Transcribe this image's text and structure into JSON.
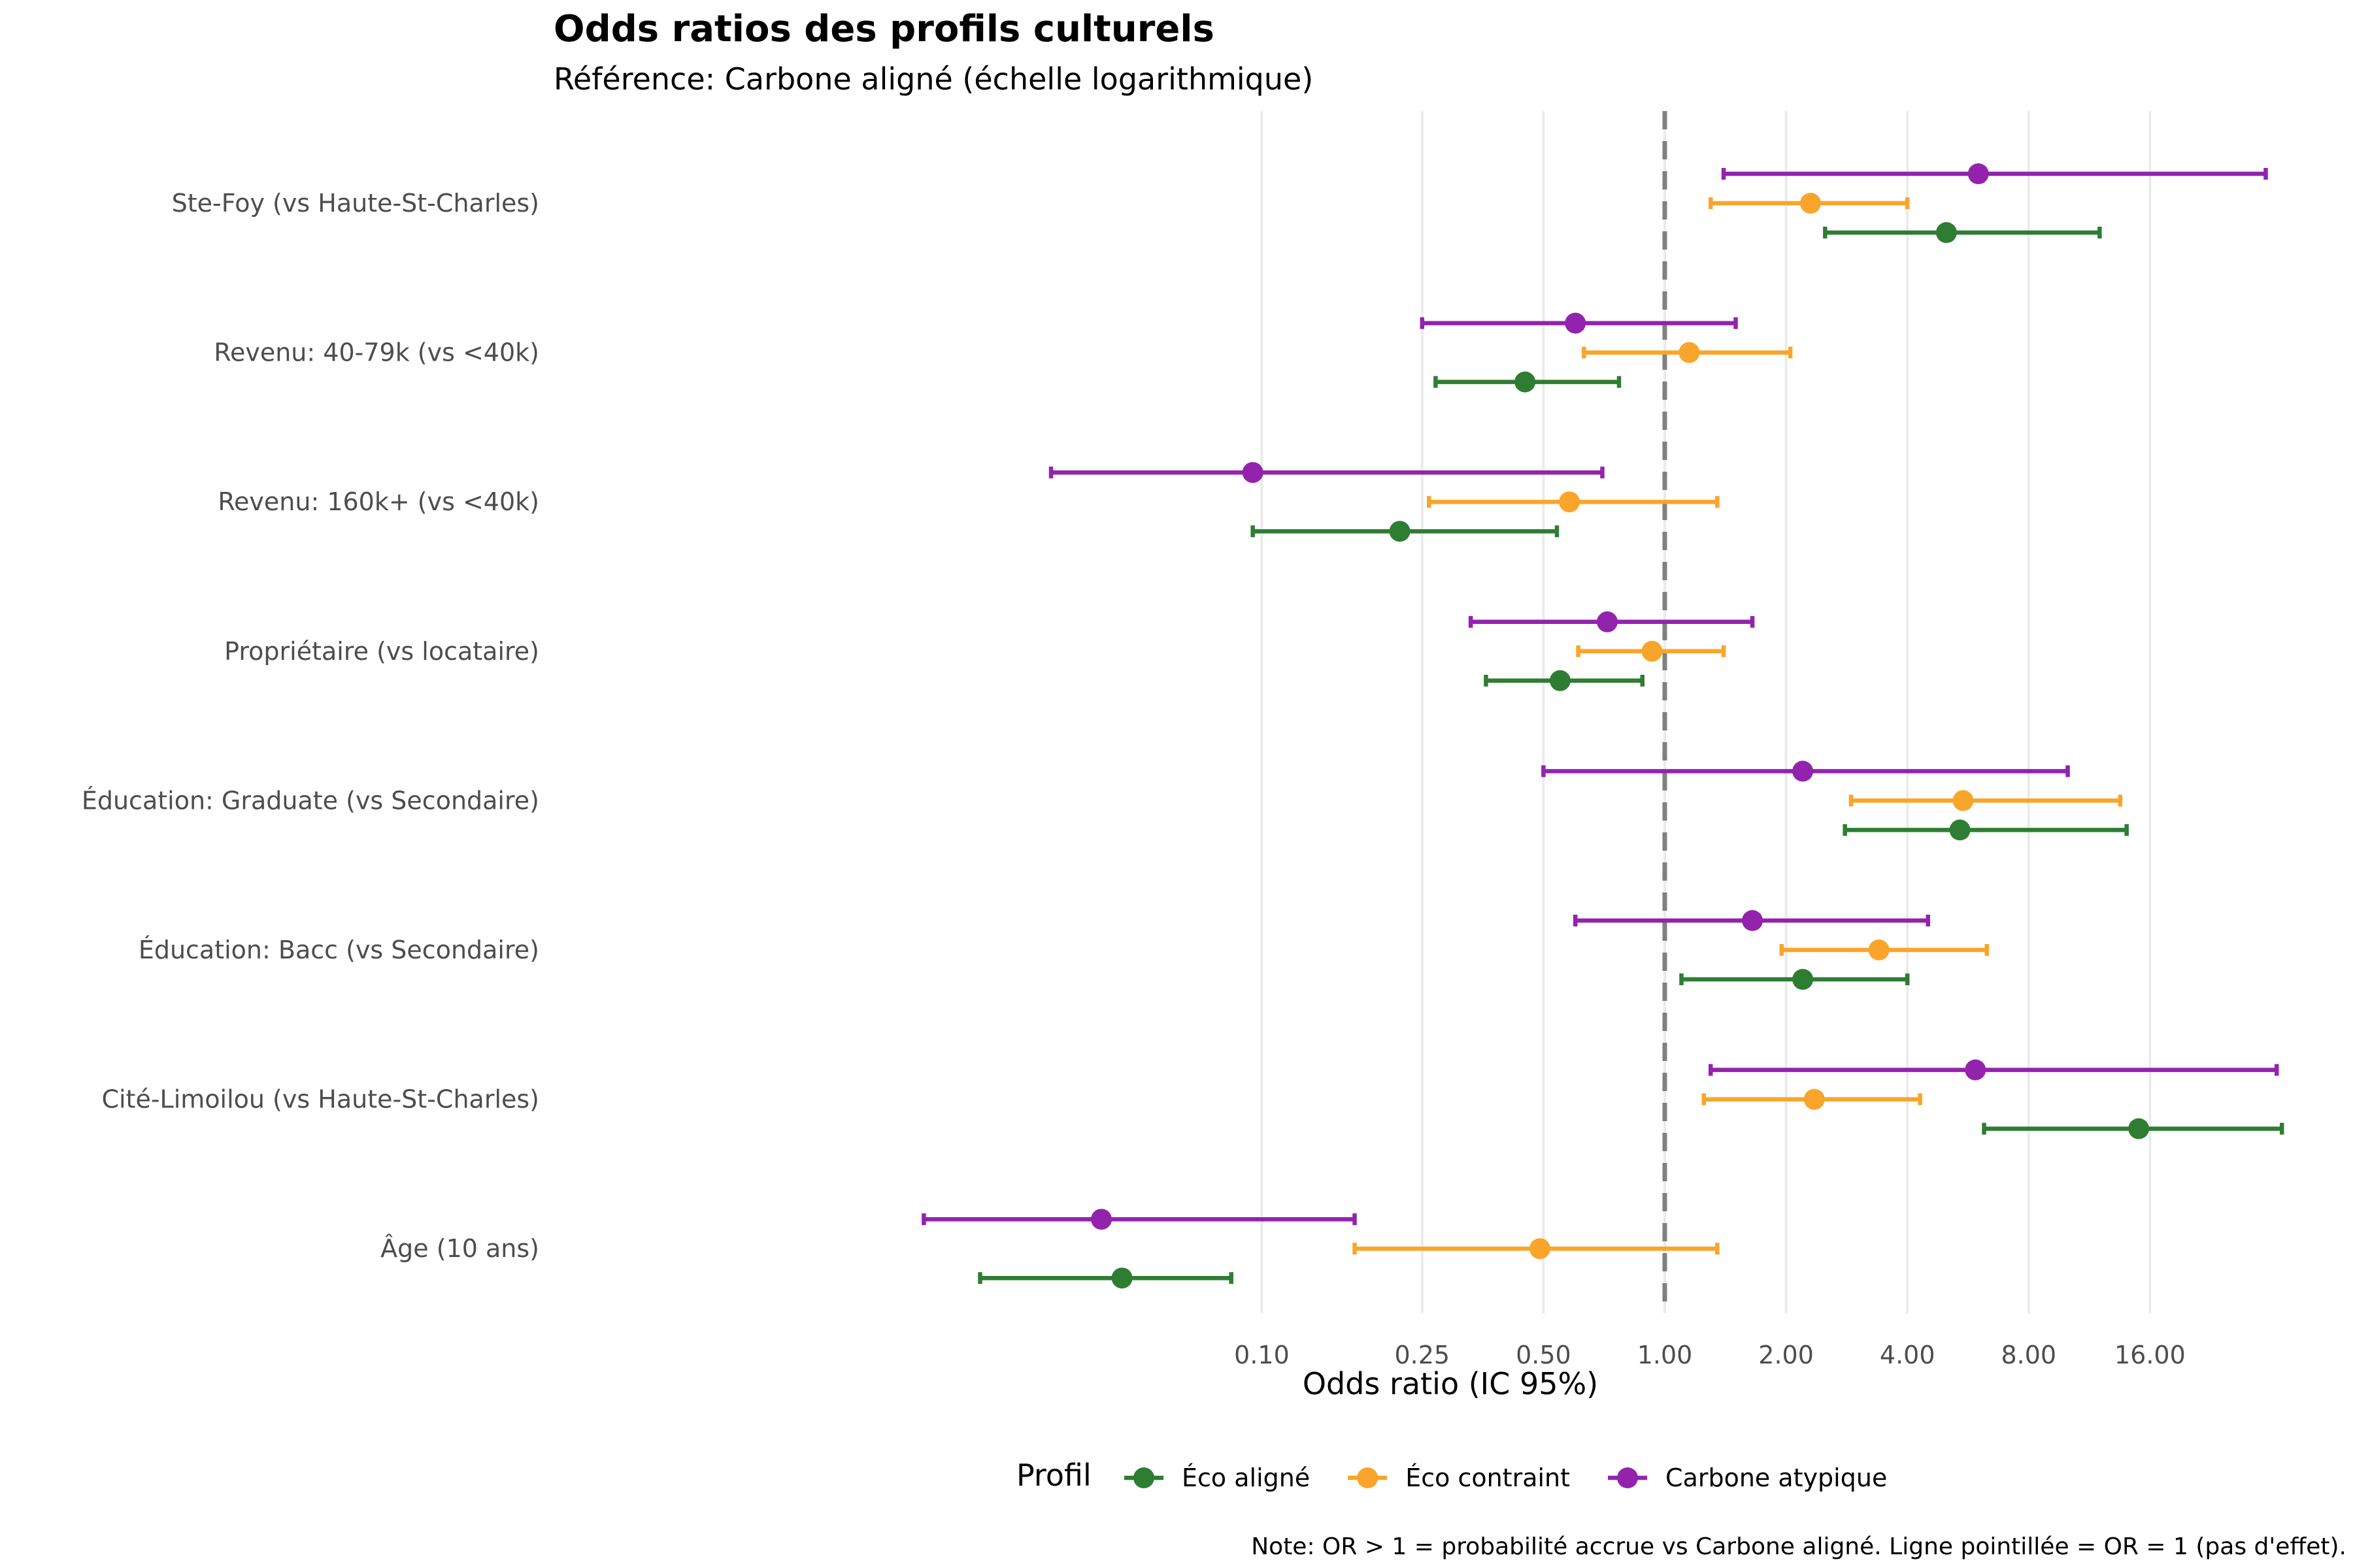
{
  "chart_data": {
    "type": "forest",
    "title": "Odds ratios des profils culturels",
    "subtitle": "Référence: Carbone aligné (échelle logarithmique)",
    "xlabel": "Odds ratio (IC 95%)",
    "ylabel": "",
    "x_scale": "log2",
    "xlim": [
      0.015,
      40
    ],
    "x_ticks": [
      0.1,
      0.25,
      0.5,
      1.0,
      2.0,
      4.0,
      8.0,
      16.0
    ],
    "x_tick_labels": [
      "0.10",
      "0.25",
      "0.50",
      "1.00",
      "2.00",
      "4.00",
      "8.00",
      "16.00"
    ],
    "reference_line": 1,
    "grid": "vertical major",
    "legend": {
      "title": "Profil",
      "position": "bottom"
    },
    "categories": [
      "Ste-Foy (vs Haute-St-Charles)",
      "Revenu: 40-79k (vs <40k)",
      "Revenu: 160k+ (vs <40k)",
      "Propriétaire (vs locataire)",
      "Éducation: Graduate (vs Secondaire)",
      "Éducation: Bacc (vs Secondaire)",
      "Cité-Limoilou (vs Haute-St-Charles)",
      "Âge (10 ans)"
    ],
    "series": [
      {
        "name": "Éco aligné",
        "color": "#2e7d32",
        "or": [
          5.0,
          0.45,
          0.22,
          0.55,
          5.4,
          2.2,
          15.0,
          0.045
        ],
        "lower": [
          2.5,
          0.27,
          0.095,
          0.36,
          2.8,
          1.1,
          6.2,
          0.02
        ],
        "upper": [
          12.0,
          0.77,
          0.54,
          0.88,
          14.0,
          4.0,
          34.0,
          0.084
        ]
      },
      {
        "name": "Éco contraint",
        "color": "#f9a52b",
        "or": [
          2.3,
          1.15,
          0.58,
          0.93,
          5.5,
          3.4,
          2.35,
          0.49
        ],
        "lower": [
          1.3,
          0.63,
          0.26,
          0.61,
          2.9,
          1.95,
          1.25,
          0.17
        ],
        "upper": [
          4.0,
          2.05,
          1.35,
          1.4,
          13.5,
          6.3,
          4.3,
          1.35
        ]
      },
      {
        "name": "Carbone atypique",
        "color": "#9323ad",
        "or": [
          6.0,
          0.6,
          0.095,
          0.72,
          2.2,
          1.65,
          5.9,
          0.04
        ],
        "lower": [
          1.4,
          0.25,
          0.03,
          0.33,
          0.5,
          0.6,
          1.3,
          0.0145
        ],
        "upper": [
          31.0,
          1.5,
          0.7,
          1.65,
          10.0,
          4.5,
          33.0,
          0.17
        ]
      }
    ],
    "note": "Note: OR > 1 = probabilité accrue vs Carbone aligné. Ligne pointillée = OR = 1 (pas d'effet)."
  }
}
